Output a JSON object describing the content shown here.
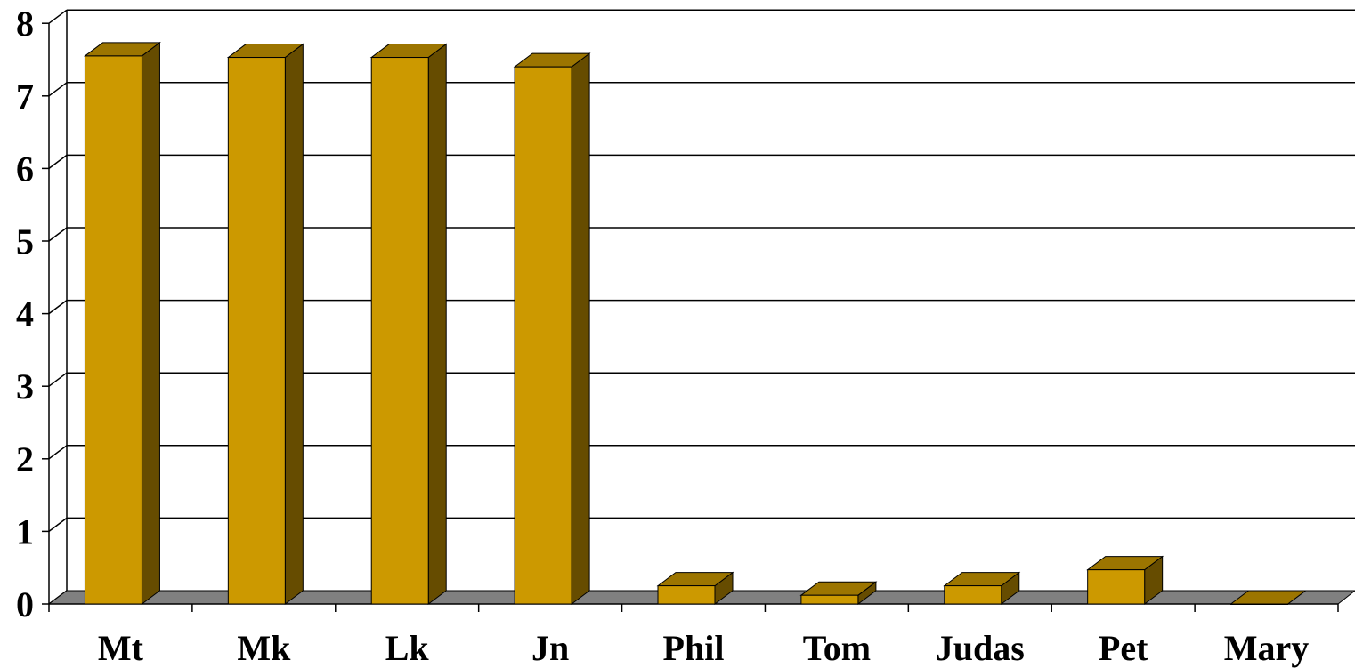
{
  "chart_data": {
    "type": "bar",
    "title": "",
    "xlabel": "",
    "ylabel": "",
    "categories": [
      "Mt",
      "Mk",
      "Lk",
      "Jn",
      "Phil",
      "Tom",
      "Judas",
      "Pet",
      "Mary"
    ],
    "values": [
      7.55,
      7.53,
      7.53,
      7.4,
      0.25,
      0.12,
      0.25,
      0.47,
      0.0
    ],
    "ylim": [
      0,
      8
    ],
    "yticks": [
      "0",
      "1",
      "2",
      "3",
      "4",
      "5",
      "6",
      "7",
      "8"
    ],
    "grid": true,
    "legend": "none",
    "style": "3d-columns"
  },
  "colors": {
    "bar_front": "#CC9900",
    "bar_side": "#664C00",
    "bar_top": "#9C7500",
    "floor": "#808080",
    "gridline": "#000000",
    "background": "#FFFFFF"
  }
}
